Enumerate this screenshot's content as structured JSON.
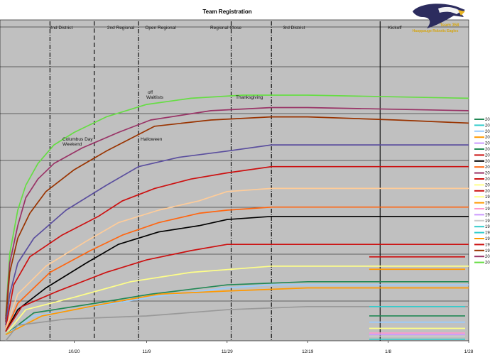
{
  "chart_data": {
    "type": "line",
    "title": "Team Registration",
    "xlabel": "",
    "ylabel": "",
    "x_tick_labels": [
      "10/20",
      "11/9",
      "11/29",
      "12/19",
      "1/8",
      "1/28"
    ],
    "x_range": [
      "10/3",
      "1/28"
    ],
    "grid": true,
    "legend_position": "right",
    "logo": {
      "line1": "Team 358",
      "line2": "Hauppauge Robotic Eagles",
      "colors": {
        "eagle": "#2c2c5e",
        "text": "#d4a514"
      }
    },
    "background_color": "#c0c0c0",
    "events": [
      {
        "label": "2nd District",
        "line_x": "10/14",
        "style": "dashdot"
      },
      {
        "label": "2nd Regional",
        "line_x": "10/25",
        "style": "dashed"
      },
      {
        "label": "Open Regional",
        "line_x": "11/7",
        "style": "dashdot"
      },
      {
        "label": "Regional Close",
        "line_x": "11/30",
        "style": "dashdot"
      },
      {
        "label": "3rd District",
        "line_x": "12/10",
        "style": "dashdot"
      },
      {
        "label": "Kickoff",
        "line_x": "1/6",
        "style": "solid"
      }
    ],
    "annotations": [
      {
        "text": "Columbus Day",
        "line2": "Weekend"
      },
      {
        "text": "Halloween"
      },
      {
        "text": "off",
        "line2": "Waitlists"
      },
      {
        "text": "Thanksgiving"
      }
    ],
    "legend_labels": [
      "20",
      "20",
      "20",
      "20",
      "20",
      "20",
      "20",
      "20",
      "20",
      "20",
      "20",
      "20",
      "20",
      "19",
      "19",
      "19",
      "19",
      "19",
      "19",
      "19",
      "19",
      "19",
      "19",
      "20",
      "20"
    ],
    "series": [
      {
        "color": "#66dd44",
        "start_y": 0.08,
        "points": [
          [
            "10/3",
            0.08
          ],
          [
            "10/4",
            0.28
          ],
          [
            "10/6",
            0.42
          ],
          [
            "10/8",
            0.5
          ],
          [
            "10/11",
            0.57
          ],
          [
            "10/15",
            0.63
          ],
          [
            "10/20",
            0.67
          ],
          [
            "10/28",
            0.72
          ],
          [
            "11/9",
            0.76
          ],
          [
            "11/20",
            0.78
          ],
          [
            "12/3",
            0.79
          ],
          [
            "12/19",
            0.79
          ],
          [
            "1/28",
            0.78
          ]
        ]
      },
      {
        "color": "#993366",
        "start_y": 0.07,
        "points": [
          [
            "10/3",
            0.07
          ],
          [
            "10/4",
            0.25
          ],
          [
            "10/6",
            0.37
          ],
          [
            "10/8",
            0.46
          ],
          [
            "10/11",
            0.52
          ],
          [
            "10/15",
            0.57
          ],
          [
            "10/22",
            0.62
          ],
          [
            "10/31",
            0.67
          ],
          [
            "11/10",
            0.71
          ],
          [
            "11/25",
            0.74
          ],
          [
            "12/10",
            0.75
          ],
          [
            "12/19",
            0.75
          ],
          [
            "1/28",
            0.74
          ]
        ]
      },
      {
        "color": "#993300",
        "start_y": 0.06,
        "points": [
          [
            "10/3",
            0.06
          ],
          [
            "10/4",
            0.22
          ],
          [
            "10/6",
            0.33
          ],
          [
            "10/9",
            0.41
          ],
          [
            "10/13",
            0.48
          ],
          [
            "10/20",
            0.55
          ],
          [
            "10/28",
            0.61
          ],
          [
            "11/5",
            0.65
          ],
          [
            "11/11",
            0.69
          ],
          [
            "11/25",
            0.71
          ],
          [
            "12/10",
            0.72
          ],
          [
            "12/19",
            0.72
          ],
          [
            "1/10",
            0.71
          ],
          [
            "1/28",
            0.7
          ]
        ]
      },
      {
        "color": "#5a4e9e",
        "start_y": 0.05,
        "points": [
          [
            "10/3",
            0.05
          ],
          [
            "10/4",
            0.15
          ],
          [
            "10/6",
            0.25
          ],
          [
            "10/10",
            0.33
          ],
          [
            "10/18",
            0.42
          ],
          [
            "10/28",
            0.5
          ],
          [
            "11/7",
            0.56
          ],
          [
            "11/17",
            0.59
          ],
          [
            "11/29",
            0.61
          ],
          [
            "12/10",
            0.63
          ],
          [
            "12/19",
            0.63
          ],
          [
            "1/28",
            0.63
          ]
        ]
      },
      {
        "color": "#cc1111",
        "start_y": 0.04,
        "points": [
          [
            "10/3",
            0.04
          ],
          [
            "10/5",
            0.18
          ],
          [
            "10/9",
            0.27
          ],
          [
            "10/17",
            0.34
          ],
          [
            "10/26",
            0.4
          ],
          [
            "11/3",
            0.45
          ],
          [
            "11/11",
            0.49
          ],
          [
            "11/20",
            0.52
          ],
          [
            "11/29",
            0.54
          ],
          [
            "12/10",
            0.56
          ],
          [
            "12/19",
            0.56
          ],
          [
            "1/28",
            0.56
          ]
        ]
      },
      {
        "color": "#ffcc99",
        "start_y": 0.04,
        "points": [
          [
            "10/3",
            0.04
          ],
          [
            "10/6",
            0.15
          ],
          [
            "10/13",
            0.24
          ],
          [
            "10/23",
            0.32
          ],
          [
            "11/2",
            0.38
          ],
          [
            "11/12",
            0.42
          ],
          [
            "11/22",
            0.45
          ],
          [
            "11/29",
            0.48
          ],
          [
            "12/10",
            0.49
          ],
          [
            "12/19",
            0.49
          ],
          [
            "1/28",
            0.49
          ]
        ]
      },
      {
        "color": "#ff6611",
        "start_y": 0.03,
        "points": [
          [
            "10/3",
            0.03
          ],
          [
            "10/6",
            0.12
          ],
          [
            "10/14",
            0.22
          ],
          [
            "10/24",
            0.29
          ],
          [
            "11/3",
            0.34
          ],
          [
            "11/12",
            0.38
          ],
          [
            "11/22",
            0.41
          ],
          [
            "11/29",
            0.42
          ],
          [
            "12/10",
            0.43
          ],
          [
            "12/19",
            0.43
          ],
          [
            "1/28",
            0.43
          ]
        ]
      },
      {
        "color": "#000000",
        "start_y": 0.03,
        "points": [
          [
            "10/3",
            0.03
          ],
          [
            "10/6",
            0.1
          ],
          [
            "10/13",
            0.17
          ],
          [
            "10/23",
            0.25
          ],
          [
            "11/2",
            0.31
          ],
          [
            "11/12",
            0.35
          ],
          [
            "11/22",
            0.37
          ],
          [
            "11/29",
            0.39
          ],
          [
            "12/10",
            0.4
          ],
          [
            "12/19",
            0.4
          ],
          [
            "1/28",
            0.4
          ]
        ]
      },
      {
        "color": "#cc1111",
        "start_y": 0.03,
        "points": [
          [
            "10/3",
            0.03
          ],
          [
            "10/7",
            0.11
          ],
          [
            "10/16",
            0.16
          ],
          [
            "10/28",
            0.22
          ],
          [
            "11/9",
            0.26
          ],
          [
            "11/20",
            0.29
          ],
          [
            "11/29",
            0.31
          ],
          [
            "12/19",
            0.31
          ],
          [
            "1/28",
            0.31
          ]
        ]
      },
      {
        "color": "#ffff88",
        "start_y": 0.02,
        "points": [
          [
            "10/3",
            0.02
          ],
          [
            "10/8",
            0.1
          ],
          [
            "10/20",
            0.14
          ],
          [
            "11/5",
            0.19
          ],
          [
            "11/20",
            0.22
          ],
          [
            "12/10",
            0.24
          ],
          [
            "12/19",
            0.24
          ],
          [
            "1/28",
            0.24
          ]
        ]
      },
      {
        "color": "#228855",
        "start_y": 0.02,
        "points": [
          [
            "10/3",
            0.02
          ],
          [
            "10/10",
            0.09
          ],
          [
            "10/25",
            0.12
          ],
          [
            "11/10",
            0.15
          ],
          [
            "11/29",
            0.18
          ],
          [
            "12/19",
            0.19
          ],
          [
            "1/28",
            0.19
          ]
        ]
      },
      {
        "color": "#99ccff",
        "start_y": 0.02,
        "points": [
          [
            "10/3",
            0.02
          ],
          [
            "10/10",
            0.08
          ],
          [
            "10/25",
            0.11
          ],
          [
            "11/10",
            0.14
          ],
          [
            "11/29",
            0.17
          ],
          [
            "12/10",
            0.18
          ],
          [
            "12/19",
            0.18
          ],
          [
            "1/28",
            0.18
          ]
        ]
      },
      {
        "color": "#ff9900",
        "start_y": 0.02,
        "points": [
          [
            "10/3",
            0.02
          ],
          [
            "10/12",
            0.08
          ],
          [
            "10/28",
            0.12
          ],
          [
            "11/12",
            0.15
          ],
          [
            "11/29",
            0.16
          ],
          [
            "12/19",
            0.17
          ],
          [
            "1/28",
            0.17
          ]
        ]
      },
      {
        "color": "#999999",
        "start_y": 0.0,
        "points": [
          [
            "10/3",
            0.0
          ],
          [
            "10/6",
            0.05
          ],
          [
            "10/18",
            0.07
          ],
          [
            "11/9",
            0.08
          ],
          [
            "11/29",
            0.1
          ],
          [
            "12/19",
            0.11
          ],
          [
            "1/28",
            0.11
          ]
        ]
      }
    ],
    "stub_lines": [
      {
        "color": "#cc1111",
        "y": 0.27
      },
      {
        "color": "#ff9900",
        "y": 0.23
      },
      {
        "color": "#33cccc",
        "y": 0.11
      },
      {
        "color": "#228855",
        "y": 0.08
      },
      {
        "color": "#99ccff",
        "y": 0.06
      },
      {
        "color": "#ffff88",
        "y": 0.04
      },
      {
        "color": "#ff99cc",
        "y": 0.025
      },
      {
        "color": "#cc99ff",
        "y": 0.02
      },
      {
        "color": "#cccccc",
        "y": 0.015
      },
      {
        "color": "#33cccc",
        "y": 0.005
      }
    ],
    "y_range": [
      0,
      1
    ]
  }
}
